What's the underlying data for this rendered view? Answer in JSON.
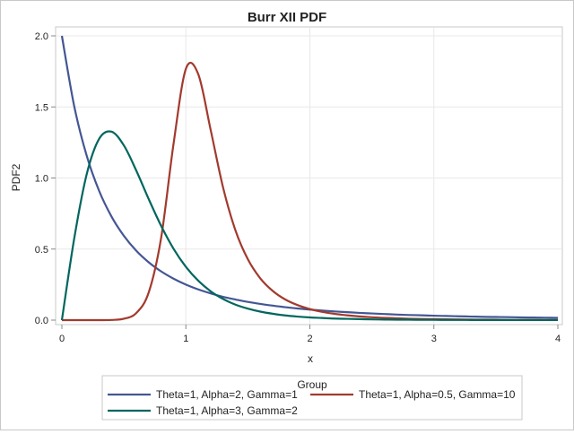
{
  "chart_data": {
    "type": "line",
    "title": "Burr XII PDF",
    "xlabel": "x",
    "ylabel": "PDF2",
    "xlim": [
      0,
      4
    ],
    "ylim": [
      0,
      2.0
    ],
    "xticks": [
      "0",
      "1",
      "2",
      "3",
      "4"
    ],
    "yticks": [
      "0.0",
      "0.5",
      "1.0",
      "1.5",
      "2.0"
    ],
    "grid": true,
    "legend": {
      "title": "Group",
      "placement": "bottom"
    },
    "x": [
      0,
      0.1,
      0.2,
      0.3,
      0.4,
      0.5,
      0.6,
      0.7,
      0.8,
      0.9,
      1.0,
      1.1,
      1.2,
      1.3,
      1.4,
      1.5,
      1.6,
      1.7,
      1.8,
      1.9,
      2.0,
      2.1,
      2.2,
      2.3,
      2.4,
      2.5,
      2.6,
      2.7,
      2.8,
      2.9,
      3.0,
      3.1,
      3.2,
      3.3,
      3.4,
      3.5,
      3.6,
      3.7,
      3.8,
      3.9,
      4.0
    ],
    "series": [
      {
        "name": "Theta=1, Alpha=2, Gamma=1",
        "color": "#445694",
        "values": [
          2.0,
          1.503,
          1.157,
          0.91,
          0.729,
          0.593,
          0.488,
          0.407,
          0.343,
          0.292,
          0.25,
          0.216,
          0.188,
          0.164,
          0.145,
          0.128,
          0.114,
          0.102,
          0.091,
          0.082,
          0.074,
          0.067,
          0.061,
          0.056,
          0.051,
          0.047,
          0.043,
          0.039,
          0.036,
          0.034,
          0.031,
          0.029,
          0.027,
          0.025,
          0.023,
          0.022,
          0.021,
          0.019,
          0.018,
          0.017,
          0.016
        ]
      },
      {
        "name": "Theta=1, Alpha=0.5, Gamma=10",
        "color": "#A23A2E",
        "values": [
          0,
          0,
          0,
          0.0001,
          0.0013,
          0.0097,
          0.05,
          0.194,
          0.576,
          1.237,
          1.768,
          1.73,
          1.338,
          0.933,
          0.631,
          0.428,
          0.294,
          0.206,
          0.146,
          0.106,
          0.078,
          0.058,
          0.044,
          0.034,
          0.026,
          0.02,
          0.016,
          0.013,
          0.01,
          0.008,
          0.007,
          0.006,
          0.005,
          0.004,
          0.003,
          0.003,
          0.002,
          0.002,
          0.002,
          0.001,
          0.001
        ]
      },
      {
        "name": "Theta=1, Alpha=3, Gamma=2",
        "color": "#01665E",
        "values": [
          0,
          0.577,
          1.026,
          1.275,
          1.326,
          1.229,
          1.052,
          0.852,
          0.664,
          0.503,
          0.375,
          0.277,
          0.203,
          0.149,
          0.109,
          0.081,
          0.06,
          0.045,
          0.033,
          0.025,
          0.019,
          0.015,
          0.011,
          0.009,
          0.007,
          0.005,
          0.004,
          0.003,
          0.003,
          0.002,
          0.002,
          0.0015,
          0.0012,
          0.001,
          0.0008,
          0.0007,
          0.0006,
          0.0005,
          0.0004,
          0.0003,
          0.0003
        ]
      }
    ]
  }
}
